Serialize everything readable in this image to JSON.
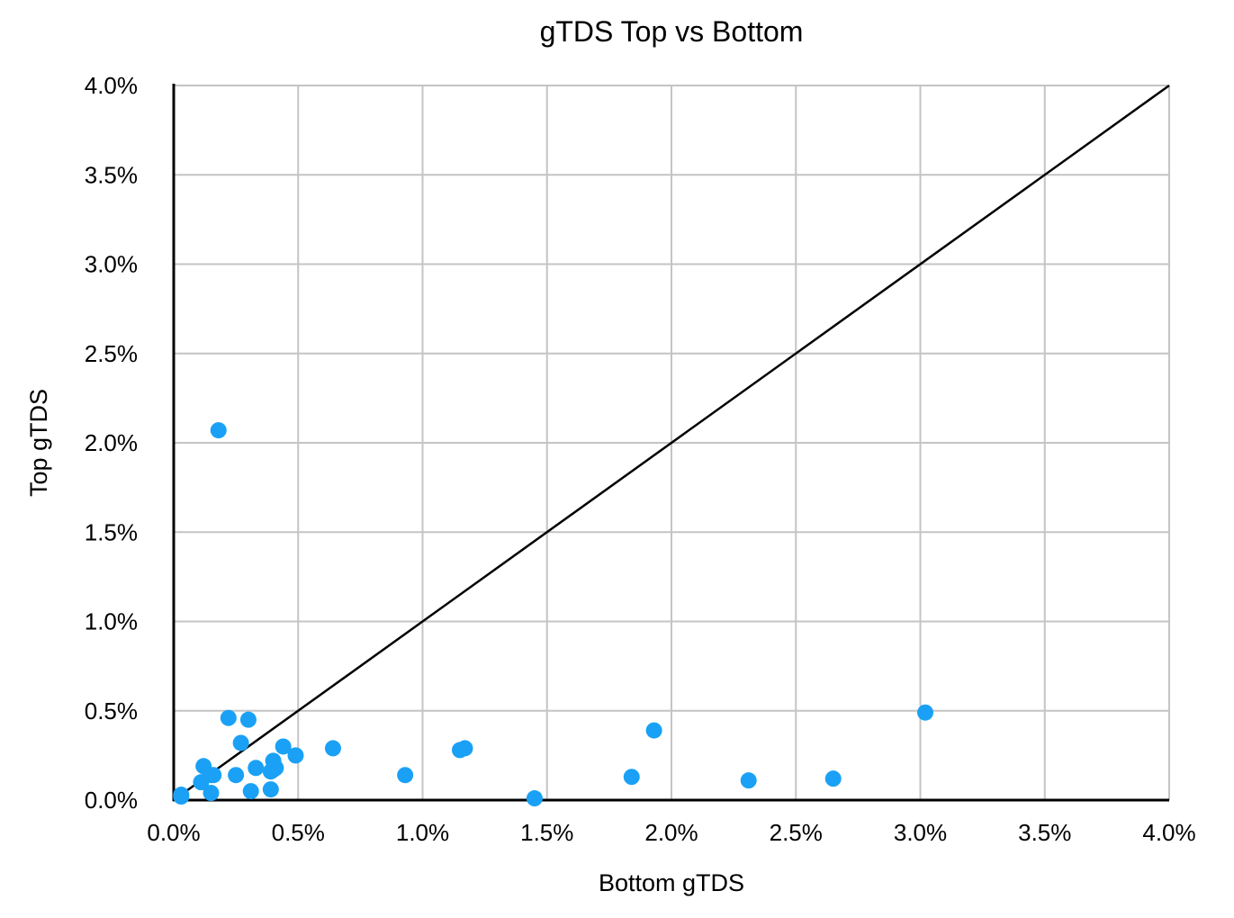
{
  "chart_data": {
    "type": "scatter",
    "title": "gTDS Top vs Bottom",
    "xlabel": "Bottom gTDS",
    "ylabel": "Top gTDS",
    "xlim": [
      0,
      0.04
    ],
    "ylim": [
      0,
      0.04
    ],
    "x_ticks": [
      0,
      0.005,
      0.01,
      0.015,
      0.02,
      0.025,
      0.03,
      0.035,
      0.04
    ],
    "y_ticks": [
      0,
      0.005,
      0.01,
      0.015,
      0.02,
      0.025,
      0.03,
      0.035,
      0.04
    ],
    "x_tick_labels": [
      "0.0%",
      "0.5%",
      "1.0%",
      "1.5%",
      "2.0%",
      "2.5%",
      "3.0%",
      "3.5%",
      "4.0%"
    ],
    "y_tick_labels": [
      "0.0%",
      "0.5%",
      "1.0%",
      "1.5%",
      "2.0%",
      "2.5%",
      "3.0%",
      "3.5%",
      "4.0%"
    ],
    "grid": true,
    "point_color": "#1aa1f5",
    "reference_line": {
      "x": [
        0.0003,
        0.04
      ],
      "y": [
        0.0003,
        0.04
      ],
      "color": "#000000"
    },
    "series": [
      {
        "x": [
          0.0003,
          0.0003,
          0.0011,
          0.0012,
          0.0015,
          0.0015,
          0.0016,
          0.0018,
          0.0022,
          0.0025,
          0.0027,
          0.003,
          0.0031,
          0.0033,
          0.0039,
          0.0039,
          0.004,
          0.004,
          0.0041,
          0.0044,
          0.0049,
          0.0064,
          0.0093,
          0.0115,
          0.0117,
          0.0145,
          0.0184,
          0.0193,
          0.0231,
          0.0265,
          0.0302
        ],
        "y": [
          0.0002,
          0.0003,
          0.001,
          0.0019,
          0.0004,
          0.0014,
          0.0014,
          0.0207,
          0.0046,
          0.0014,
          0.0032,
          0.0045,
          0.0005,
          0.0018,
          0.0006,
          0.0016,
          0.0022,
          0.0017,
          0.0018,
          0.003,
          0.0025,
          0.0029,
          0.0014,
          0.0028,
          0.0029,
          0.0001,
          0.0013,
          0.0039,
          0.0011,
          0.0012,
          0.0049
        ]
      }
    ]
  }
}
